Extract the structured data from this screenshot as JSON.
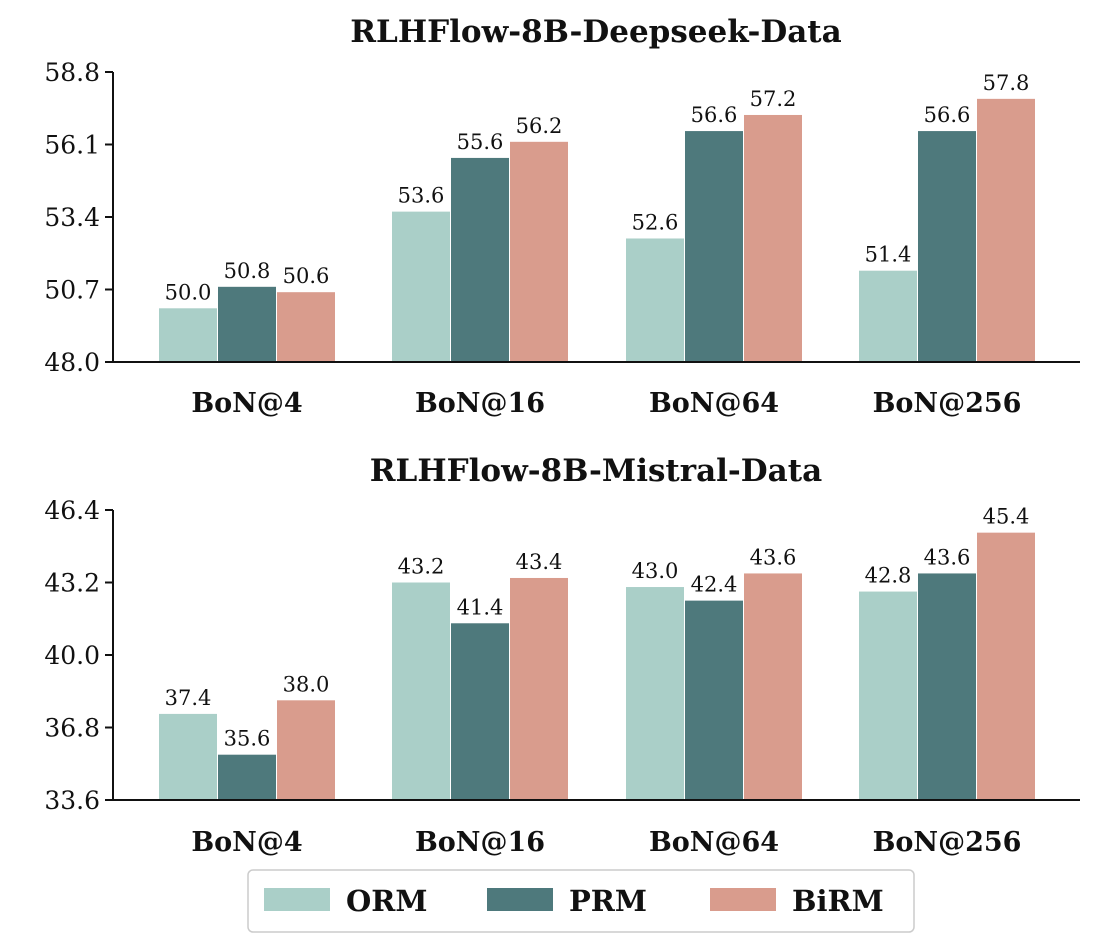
{
  "colors": {
    "ORM": "#aacfc8",
    "PRM": "#4e797c",
    "BiRM": "#d99c8d"
  },
  "chart_data": [
    {
      "type": "bar",
      "title": "RLHFlow-8B-Deepseek-Data",
      "categories": [
        "BoN@4",
        "BoN@16",
        "BoN@64",
        "BoN@256"
      ],
      "series": [
        {
          "name": "ORM",
          "values": [
            50.0,
            53.6,
            52.6,
            51.4
          ]
        },
        {
          "name": "PRM",
          "values": [
            50.8,
            55.6,
            56.6,
            56.6
          ]
        },
        {
          "name": "BiRM",
          "values": [
            50.6,
            56.2,
            57.2,
            57.8
          ]
        }
      ],
      "ylim": [
        48.0,
        58.8
      ],
      "yticks": [
        "48.0",
        "50.7",
        "53.4",
        "56.1",
        "58.8"
      ],
      "grid": false
    },
    {
      "type": "bar",
      "title": "RLHFlow-8B-Mistral-Data",
      "categories": [
        "BoN@4",
        "BoN@16",
        "BoN@64",
        "BoN@256"
      ],
      "series": [
        {
          "name": "ORM",
          "values": [
            37.4,
            43.2,
            43.0,
            42.8
          ]
        },
        {
          "name": "PRM",
          "values": [
            35.6,
            41.4,
            42.4,
            43.6
          ]
        },
        {
          "name": "BiRM",
          "values": [
            38.0,
            43.4,
            43.6,
            45.4
          ]
        }
      ],
      "ylim": [
        33.6,
        46.4
      ],
      "yticks": [
        "33.6",
        "36.8",
        "40.0",
        "43.2",
        "46.4"
      ],
      "grid": false
    }
  ],
  "legend": {
    "placement": "bottom-center",
    "items": [
      "ORM",
      "PRM",
      "BiRM"
    ]
  }
}
